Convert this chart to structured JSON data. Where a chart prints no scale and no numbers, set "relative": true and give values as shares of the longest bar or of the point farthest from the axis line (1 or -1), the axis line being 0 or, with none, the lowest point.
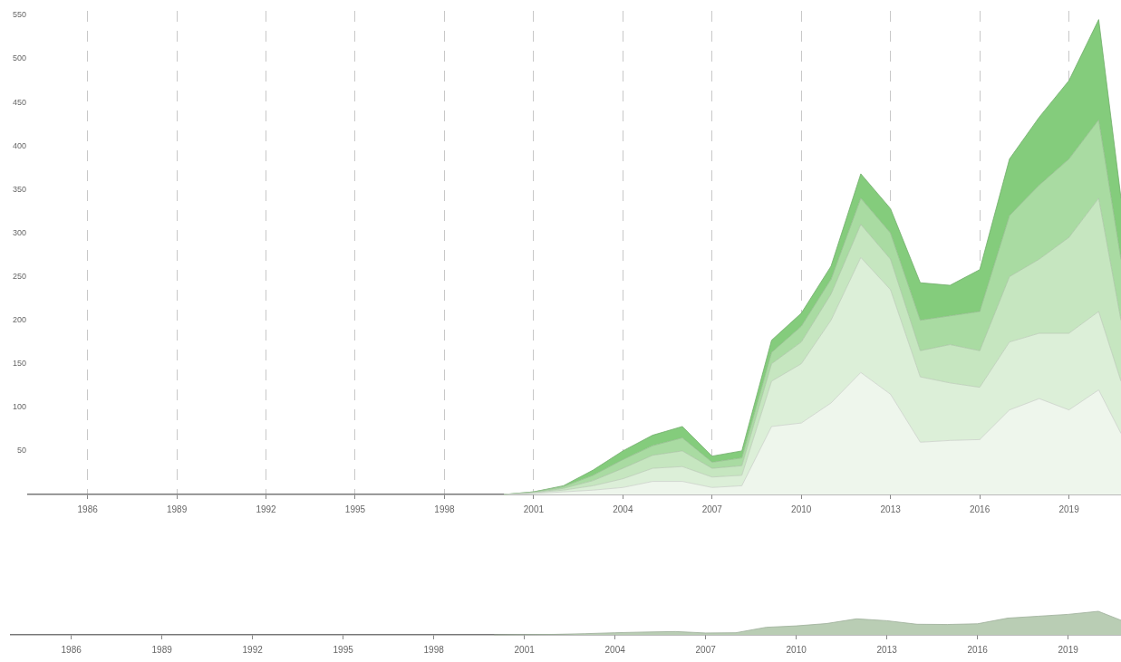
{
  "chart_data": [
    {
      "type": "area",
      "stacked": true,
      "grid": "x",
      "legend": false,
      "marker": "none",
      "x": [
        2000,
        2001,
        2002,
        2003,
        2004,
        2005,
        2006,
        2007,
        2008,
        2009,
        2010,
        2011,
        2012,
        2013,
        2014,
        2015,
        2016,
        2017,
        2018,
        2019,
        2020,
        2020.75
      ],
      "xlim": [
        1984,
        2020.75
      ],
      "xticks": [
        1986,
        1989,
        1992,
        1995,
        1998,
        2001,
        2004,
        2007,
        2010,
        2013,
        2016,
        2019
      ],
      "ylim": [
        0,
        555
      ],
      "yticks": [
        50,
        100,
        150,
        200,
        250,
        300,
        350,
        400,
        450,
        500,
        550
      ],
      "series": [
        {
          "color": "#eef6ec",
          "values": [
            0,
            1,
            3,
            5,
            8,
            15,
            15,
            8,
            10,
            78,
            82,
            105,
            140,
            115,
            60,
            62,
            63,
            97,
            110,
            97,
            120,
            70
          ]
        },
        {
          "color": "#dcefd8",
          "values": [
            0,
            1,
            2,
            5,
            10,
            15,
            17,
            12,
            12,
            52,
            68,
            95,
            132,
            120,
            75,
            66,
            60,
            78,
            75,
            88,
            90,
            60
          ]
        },
        {
          "color": "#c6e6c0",
          "values": [
            0,
            0,
            2,
            6,
            12,
            15,
            18,
            10,
            11,
            20,
            25,
            30,
            38,
            35,
            30,
            44,
            42,
            75,
            85,
            110,
            130,
            70
          ]
        },
        {
          "color": "#a9dba2",
          "values": [
            0,
            1,
            2,
            6,
            10,
            11,
            15,
            7,
            9,
            13,
            18,
            17,
            30,
            30,
            35,
            33,
            45,
            70,
            85,
            90,
            90,
            70
          ]
        },
        {
          "color": "#84cc7c",
          "values": [
            0,
            0,
            1,
            6,
            10,
            12,
            13,
            7,
            8,
            14,
            15,
            15,
            28,
            28,
            43,
            35,
            48,
            65,
            78,
            90,
            115,
            70
          ]
        }
      ]
    },
    {
      "type": "area",
      "relative": true,
      "tick_labels": "x",
      "legend": false,
      "marker": "none",
      "x": [
        2000,
        2001,
        2002,
        2003,
        2004,
        2005,
        2006,
        2007,
        2008,
        2009,
        2010,
        2011,
        2012,
        2013,
        2014,
        2015,
        2016,
        2017,
        2018,
        2019,
        2020,
        2020.75
      ],
      "xlim": [
        1984,
        2020.75
      ],
      "xticks": [
        1986,
        1989,
        1992,
        1995,
        1998,
        2001,
        2004,
        2007,
        2010,
        2013,
        2016,
        2019
      ],
      "color": "#b9cdb4",
      "values": [
        0,
        0.01,
        0.02,
        0.05,
        0.09,
        0.12,
        0.14,
        0.08,
        0.09,
        0.32,
        0.38,
        0.48,
        0.68,
        0.6,
        0.45,
        0.44,
        0.47,
        0.71,
        0.79,
        0.87,
        1,
        0.62
      ]
    }
  ]
}
